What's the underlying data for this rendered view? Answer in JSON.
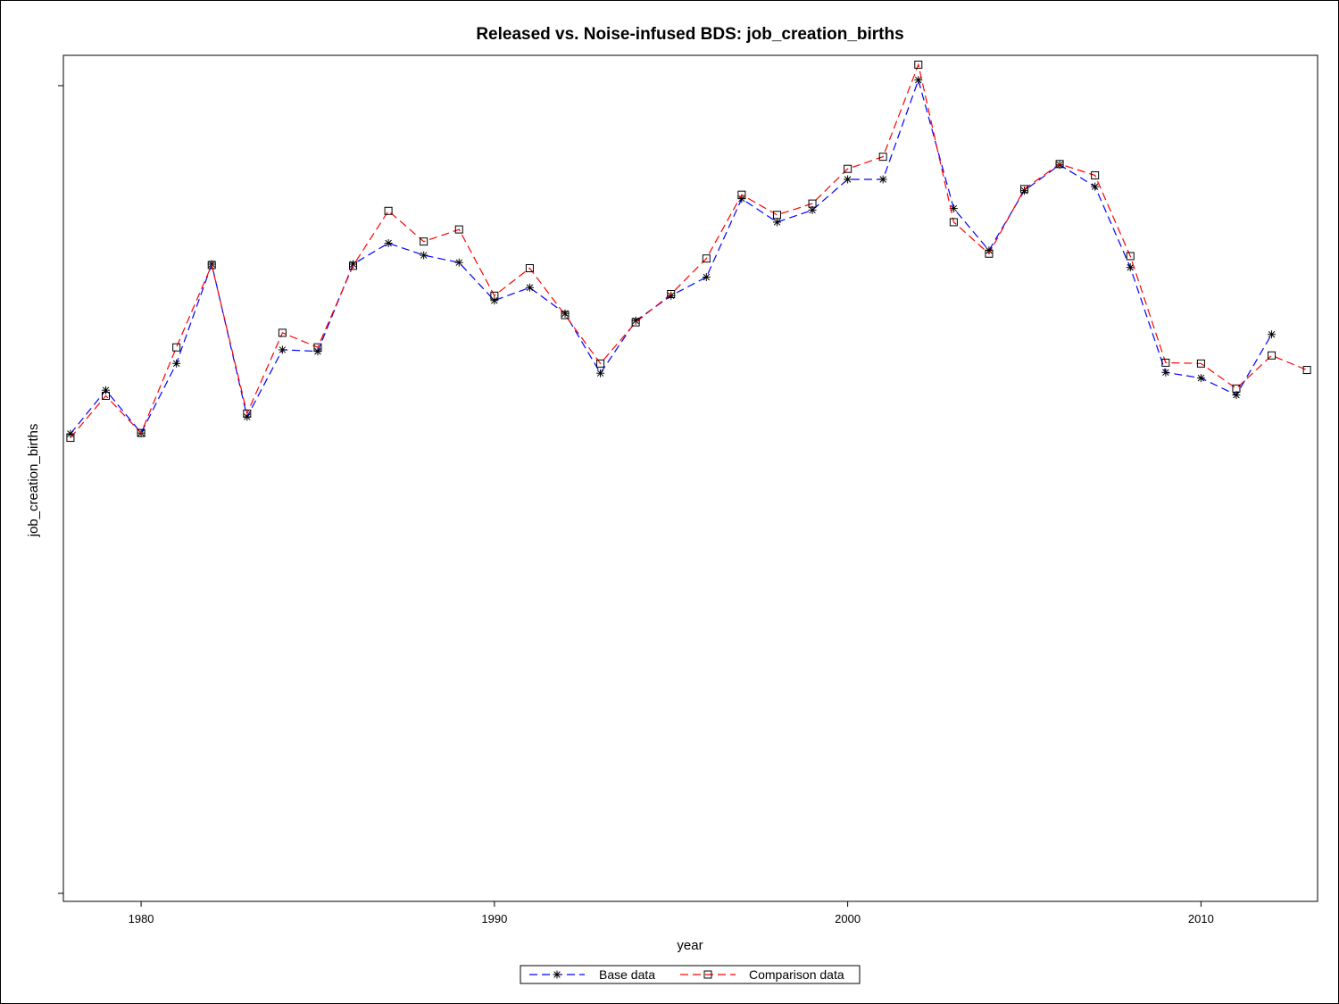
{
  "chart_data": {
    "type": "line",
    "title": "Released vs. Noise-infused BDS: job_creation_births",
    "xlabel": "year",
    "ylabel": "job_creation_births",
    "xlim": [
      1977.8,
      2013.3
    ],
    "ylim": [
      0,
      100
    ],
    "x_ticks": [
      1980,
      1990,
      2000,
      2010
    ],
    "y_ticks_labeled": false,
    "grid": false,
    "legend_position": "bottom-center",
    "series": [
      {
        "name": "Base data",
        "color": "#0000ff",
        "marker": "star",
        "line_style": "dashed",
        "x": [
          1978,
          1979,
          1980,
          1981,
          1982,
          1983,
          1984,
          1985,
          1986,
          1987,
          1988,
          1989,
          1990,
          1991,
          1992,
          1993,
          1994,
          1995,
          1996,
          1997,
          1998,
          1999,
          2000,
          2001,
          2002,
          2003,
          2004,
          2005,
          2006,
          2007,
          2008,
          2009,
          2010,
          2011,
          2012
        ],
        "values": [
          56.9,
          62.3,
          57.0,
          65.6,
          77.9,
          59.0,
          67.3,
          67.1,
          77.9,
          80.5,
          79.0,
          78.1,
          73.4,
          75.0,
          71.8,
          64.4,
          70.9,
          74.0,
          76.3,
          86.0,
          83.1,
          84.6,
          88.4,
          88.4,
          100.7,
          84.8,
          79.6,
          87.0,
          90.2,
          87.5,
          77.5,
          64.5,
          63.8,
          61.7,
          69.2
        ]
      },
      {
        "name": "Comparison data",
        "color": "#ff0000",
        "marker": "square",
        "line_style": "dashed",
        "x": [
          1978,
          1979,
          1980,
          1981,
          1982,
          1983,
          1984,
          1985,
          1986,
          1987,
          1988,
          1989,
          1990,
          1991,
          1992,
          1993,
          1994,
          1995,
          1996,
          1997,
          1998,
          1999,
          2000,
          2001,
          2002,
          2003,
          2004,
          2005,
          2006,
          2007,
          2008,
          2009,
          2010,
          2011,
          2012,
          2013
        ],
        "values": [
          56.4,
          61.6,
          57.0,
          67.6,
          77.8,
          59.4,
          69.4,
          67.6,
          77.7,
          84.5,
          80.7,
          82.2,
          74.0,
          77.4,
          71.6,
          65.6,
          70.7,
          74.2,
          78.6,
          86.5,
          84.0,
          85.4,
          89.7,
          91.2,
          102.6,
          83.1,
          79.2,
          87.2,
          90.3,
          88.9,
          78.9,
          65.7,
          65.6,
          62.5,
          66.6,
          64.8
        ]
      }
    ]
  }
}
